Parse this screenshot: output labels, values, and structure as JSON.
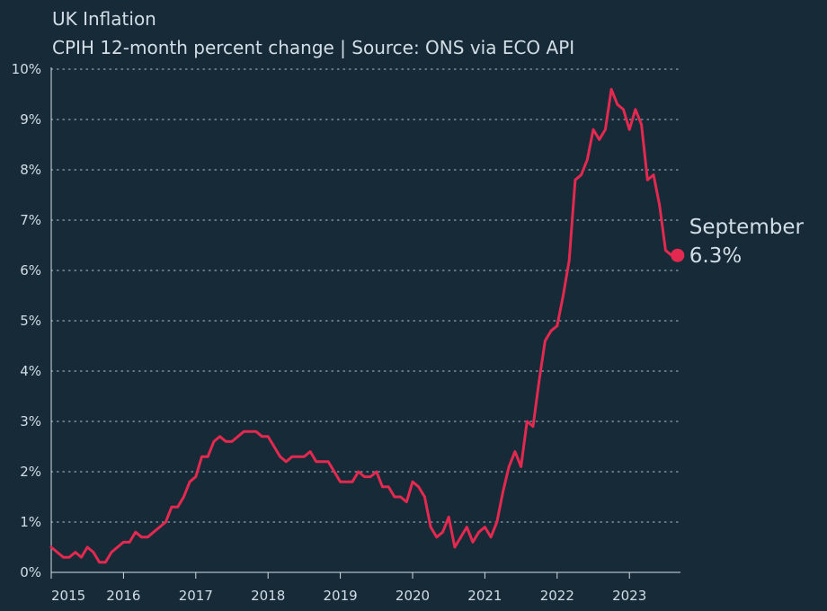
{
  "chart_data": {
    "type": "line",
    "title": "UK Inflation",
    "subtitle": "CPIH 12-month percent change | Source: ONS via ECO API",
    "xlabel": "",
    "ylabel": "",
    "x_start": "2015-01",
    "x_end": "2023-09",
    "x_ticks": [
      "2015",
      "2016",
      "2017",
      "2018",
      "2019",
      "2020",
      "2021",
      "2022",
      "2023"
    ],
    "ylim": [
      0,
      10
    ],
    "y_ticks": [
      "0%",
      "1%",
      "2%",
      "3%",
      "4%",
      "5%",
      "6%",
      "7%",
      "8%",
      "9%",
      "10%"
    ],
    "grid": "horizontal dotted",
    "colors": {
      "background": "#172a38",
      "line": "#e3294f",
      "text": "#d3dde5",
      "grid": "#8fa3b0"
    },
    "annotation": {
      "label": "September",
      "value": "6.3%"
    },
    "series": [
      {
        "values": [
          0.5,
          0.4,
          0.3,
          0.3,
          0.4,
          0.3,
          0.5,
          0.4,
          0.2,
          0.2,
          0.4,
          0.5,
          0.6,
          0.6,
          0.8,
          0.7,
          0.7,
          0.8,
          0.9,
          1.0,
          1.3,
          1.3,
          1.5,
          1.8,
          1.9,
          2.3,
          2.3,
          2.6,
          2.7,
          2.6,
          2.6,
          2.7,
          2.8,
          2.8,
          2.8,
          2.7,
          2.7,
          2.5,
          2.3,
          2.2,
          2.3,
          2.3,
          2.3,
          2.4,
          2.2,
          2.2,
          2.2,
          2.0,
          1.8,
          1.8,
          1.8,
          2.0,
          1.9,
          1.9,
          2.0,
          1.7,
          1.7,
          1.5,
          1.5,
          1.4,
          1.8,
          1.7,
          1.5,
          0.9,
          0.7,
          0.8,
          1.1,
          0.5,
          0.7,
          0.9,
          0.6,
          0.8,
          0.9,
          0.7,
          1.0,
          1.6,
          2.1,
          2.4,
          2.1,
          3.0,
          2.9,
          3.8,
          4.6,
          4.8,
          4.9,
          5.5,
          6.2,
          7.8,
          7.9,
          8.2,
          8.8,
          8.6,
          8.8,
          9.6,
          9.3,
          9.2,
          8.8,
          9.2,
          8.9,
          7.8,
          7.9,
          7.3,
          6.4,
          6.3,
          6.3
        ]
      }
    ]
  }
}
